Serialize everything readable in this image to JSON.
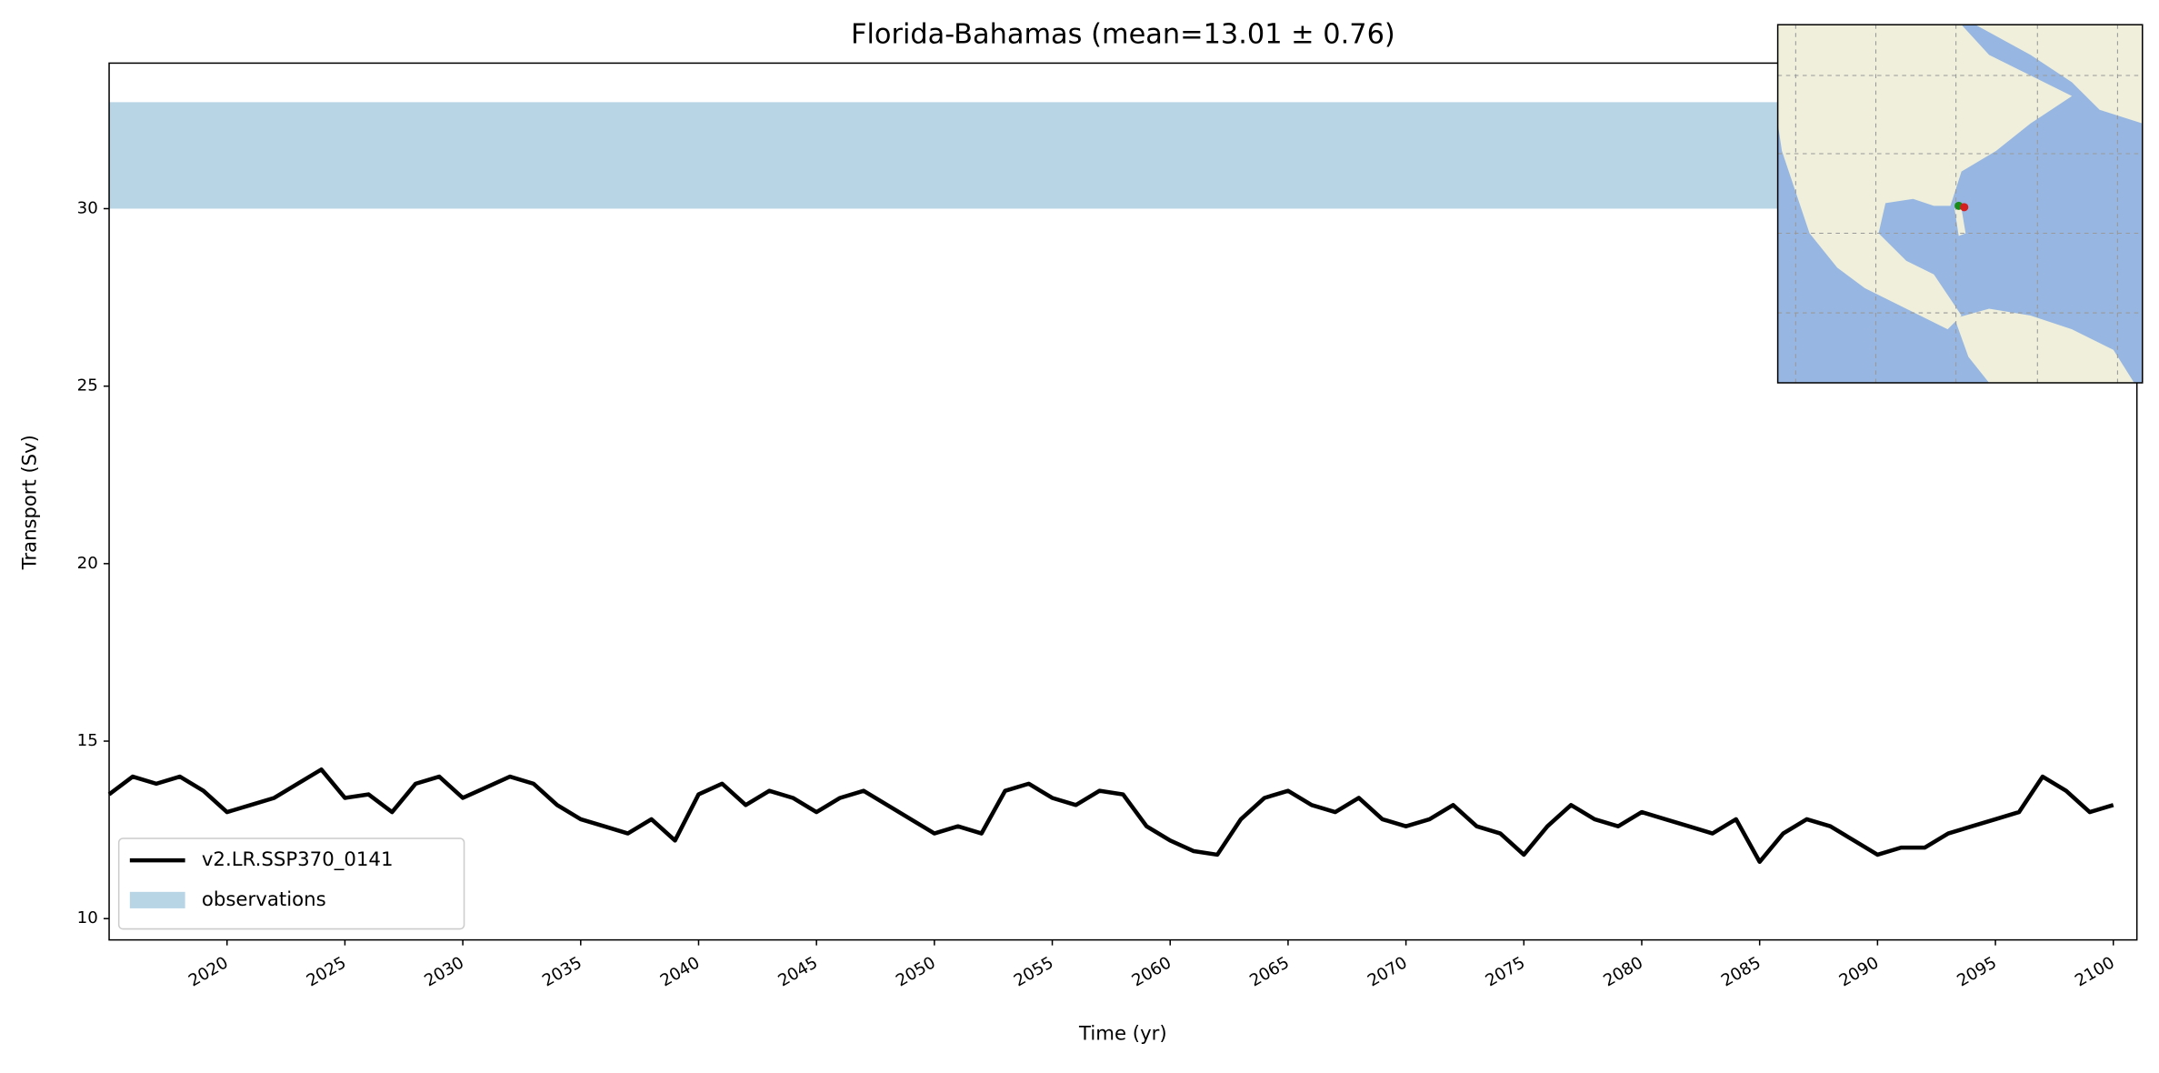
{
  "chart_data": {
    "type": "line",
    "title": "Florida-Bahamas (mean=13.01 ± 0.76)",
    "x_label": "Time (yr)",
    "y_label": "Transport (Sv)",
    "x": [
      2015,
      2016,
      2017,
      2018,
      2019,
      2020,
      2021,
      2022,
      2023,
      2024,
      2025,
      2026,
      2027,
      2028,
      2029,
      2030,
      2031,
      2032,
      2033,
      2034,
      2035,
      2036,
      2037,
      2038,
      2039,
      2040,
      2041,
      2042,
      2043,
      2044,
      2045,
      2046,
      2047,
      2048,
      2049,
      2050,
      2051,
      2052,
      2053,
      2054,
      2055,
      2056,
      2057,
      2058,
      2059,
      2060,
      2061,
      2062,
      2063,
      2064,
      2065,
      2066,
      2067,
      2068,
      2069,
      2070,
      2071,
      2072,
      2073,
      2074,
      2075,
      2076,
      2077,
      2078,
      2079,
      2080,
      2081,
      2082,
      2083,
      2084,
      2085,
      2086,
      2087,
      2088,
      2089,
      2090,
      2091,
      2092,
      2093,
      2094,
      2095,
      2096,
      2097,
      2098,
      2099,
      2100
    ],
    "series": [
      {
        "name": "v2.LR.SSP370_0141",
        "color": "#000000",
        "values": [
          13.5,
          14.0,
          13.8,
          14.0,
          13.6,
          13.0,
          13.2,
          13.4,
          13.8,
          14.2,
          13.4,
          13.5,
          13.0,
          13.8,
          14.0,
          13.4,
          13.7,
          14.0,
          13.8,
          13.2,
          12.8,
          12.6,
          12.4,
          12.8,
          12.2,
          13.5,
          13.8,
          13.2,
          13.6,
          13.4,
          13.0,
          13.4,
          13.6,
          13.2,
          12.8,
          12.4,
          12.6,
          12.4,
          13.6,
          13.8,
          13.4,
          13.2,
          13.6,
          13.5,
          12.6,
          12.2,
          11.9,
          11.8,
          12.8,
          13.4,
          13.6,
          13.2,
          13.0,
          13.4,
          12.8,
          12.6,
          12.8,
          13.2,
          12.6,
          12.4,
          11.8,
          12.6,
          13.2,
          12.8,
          12.6,
          13.0,
          12.8,
          12.6,
          12.4,
          12.8,
          11.6,
          12.4,
          12.8,
          12.6,
          12.2,
          11.8,
          12.0,
          12.0,
          12.4,
          12.6,
          12.8,
          13.0,
          14.0,
          13.6,
          13.0,
          13.2
        ]
      }
    ],
    "bands": [
      {
        "name": "observations",
        "color": "#b8d5e6",
        "range": [
          30,
          33
        ]
      }
    ],
    "xlim": [
      2015,
      2101
    ],
    "ylim": [
      9.4,
      34.1
    ],
    "xticks": [
      2020,
      2025,
      2030,
      2035,
      2040,
      2045,
      2050,
      2055,
      2060,
      2065,
      2070,
      2075,
      2080,
      2085,
      2090,
      2095,
      2100
    ],
    "yticks": [
      10,
      15,
      20,
      25,
      30
    ],
    "legend_loc": "lower left",
    "grid": false
  }
}
